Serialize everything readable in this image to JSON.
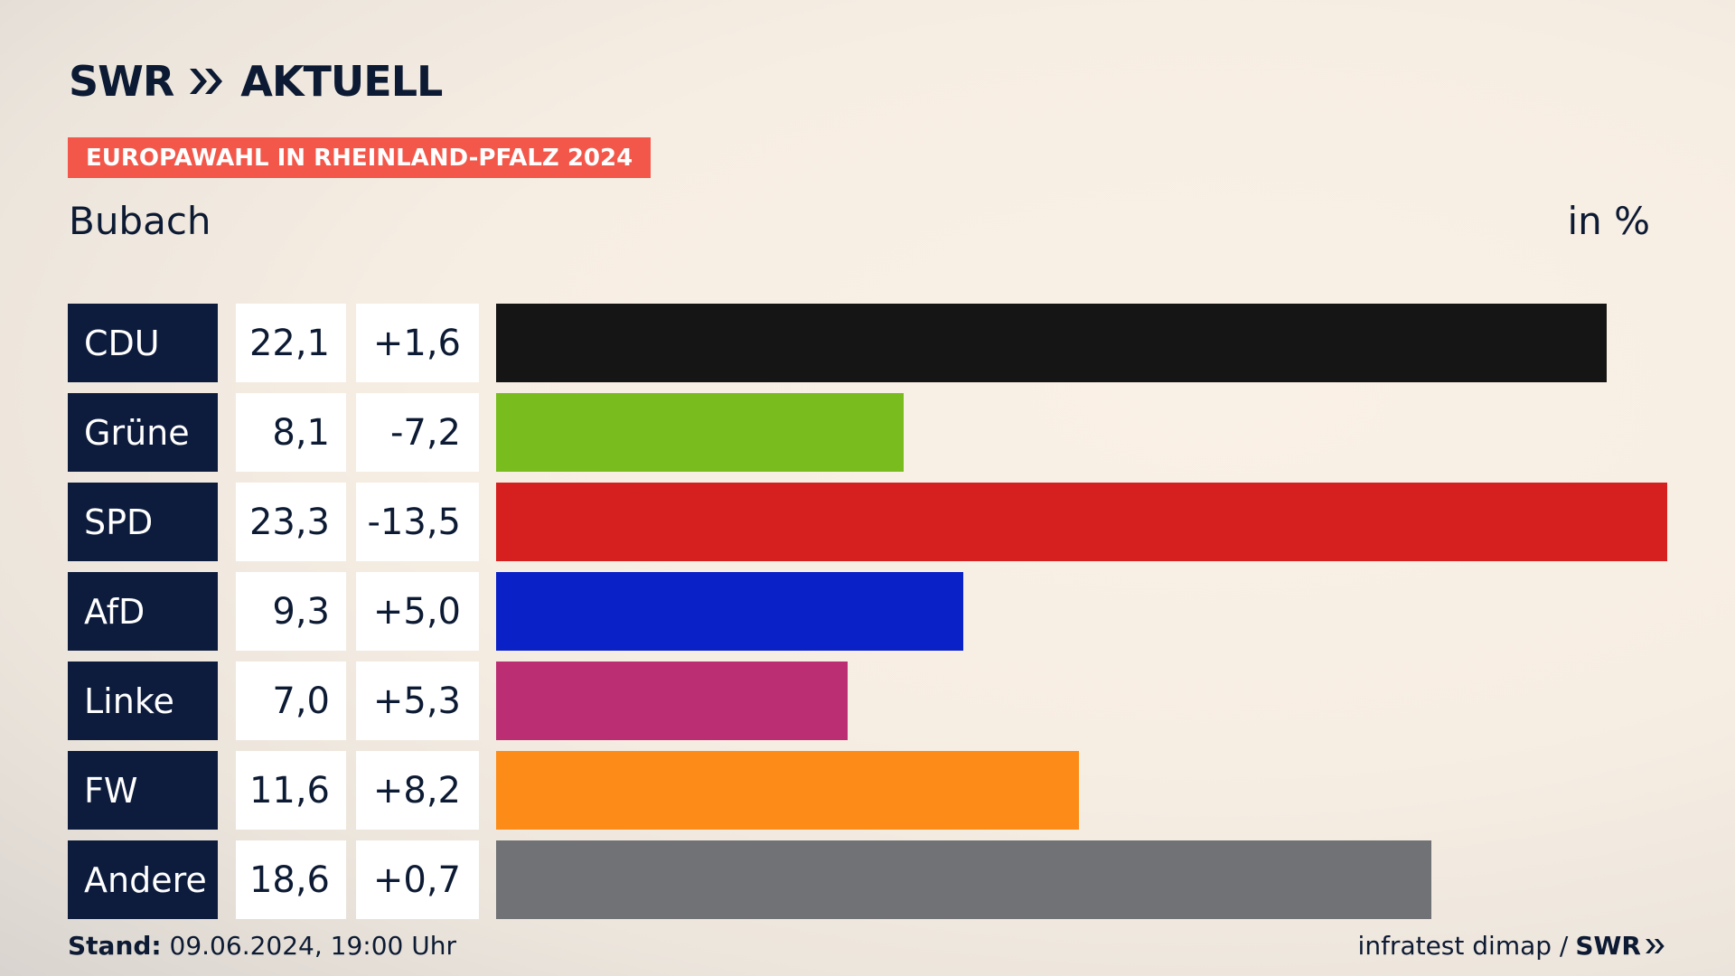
{
  "header": {
    "logo_text": "SWR",
    "logo_suffix": "AKTUELL",
    "badge": "EUROPAWAHL IN RHEINLAND-PFALZ 2024",
    "region": "Bubach",
    "unit": "in %"
  },
  "colors": {
    "CDU": "#151515",
    "Grüne": "#78bc1e",
    "SPD": "#d6201f",
    "AfD": "#0a21c8",
    "Linke": "#bc2e73",
    "FW": "#fc8c17",
    "Andere": "#717275"
  },
  "chart_data": {
    "type": "bar",
    "orientation": "horizontal",
    "categories": [
      "CDU",
      "Grüne",
      "SPD",
      "AfD",
      "Linke",
      "FW",
      "Andere"
    ],
    "values": [
      22.1,
      8.1,
      23.3,
      9.3,
      7.0,
      11.6,
      18.6
    ],
    "value_labels": [
      "22,1",
      "8,1",
      "23,3",
      "9,3",
      "7,0",
      "11,6",
      "18,6"
    ],
    "differences": [
      "+1,6",
      "-7,2",
      "-13,5",
      "+5,0",
      "+5,3",
      "+8,2",
      "+0,7"
    ],
    "title": "Bubach",
    "unit": "in %",
    "xlim": [
      0,
      23.3
    ],
    "grid": false
  },
  "footer": {
    "stand_label": "Stand:",
    "stand_value": "09.06.2024, 19:00 Uhr",
    "source": "infratest dimap /",
    "brand": "SWR"
  }
}
